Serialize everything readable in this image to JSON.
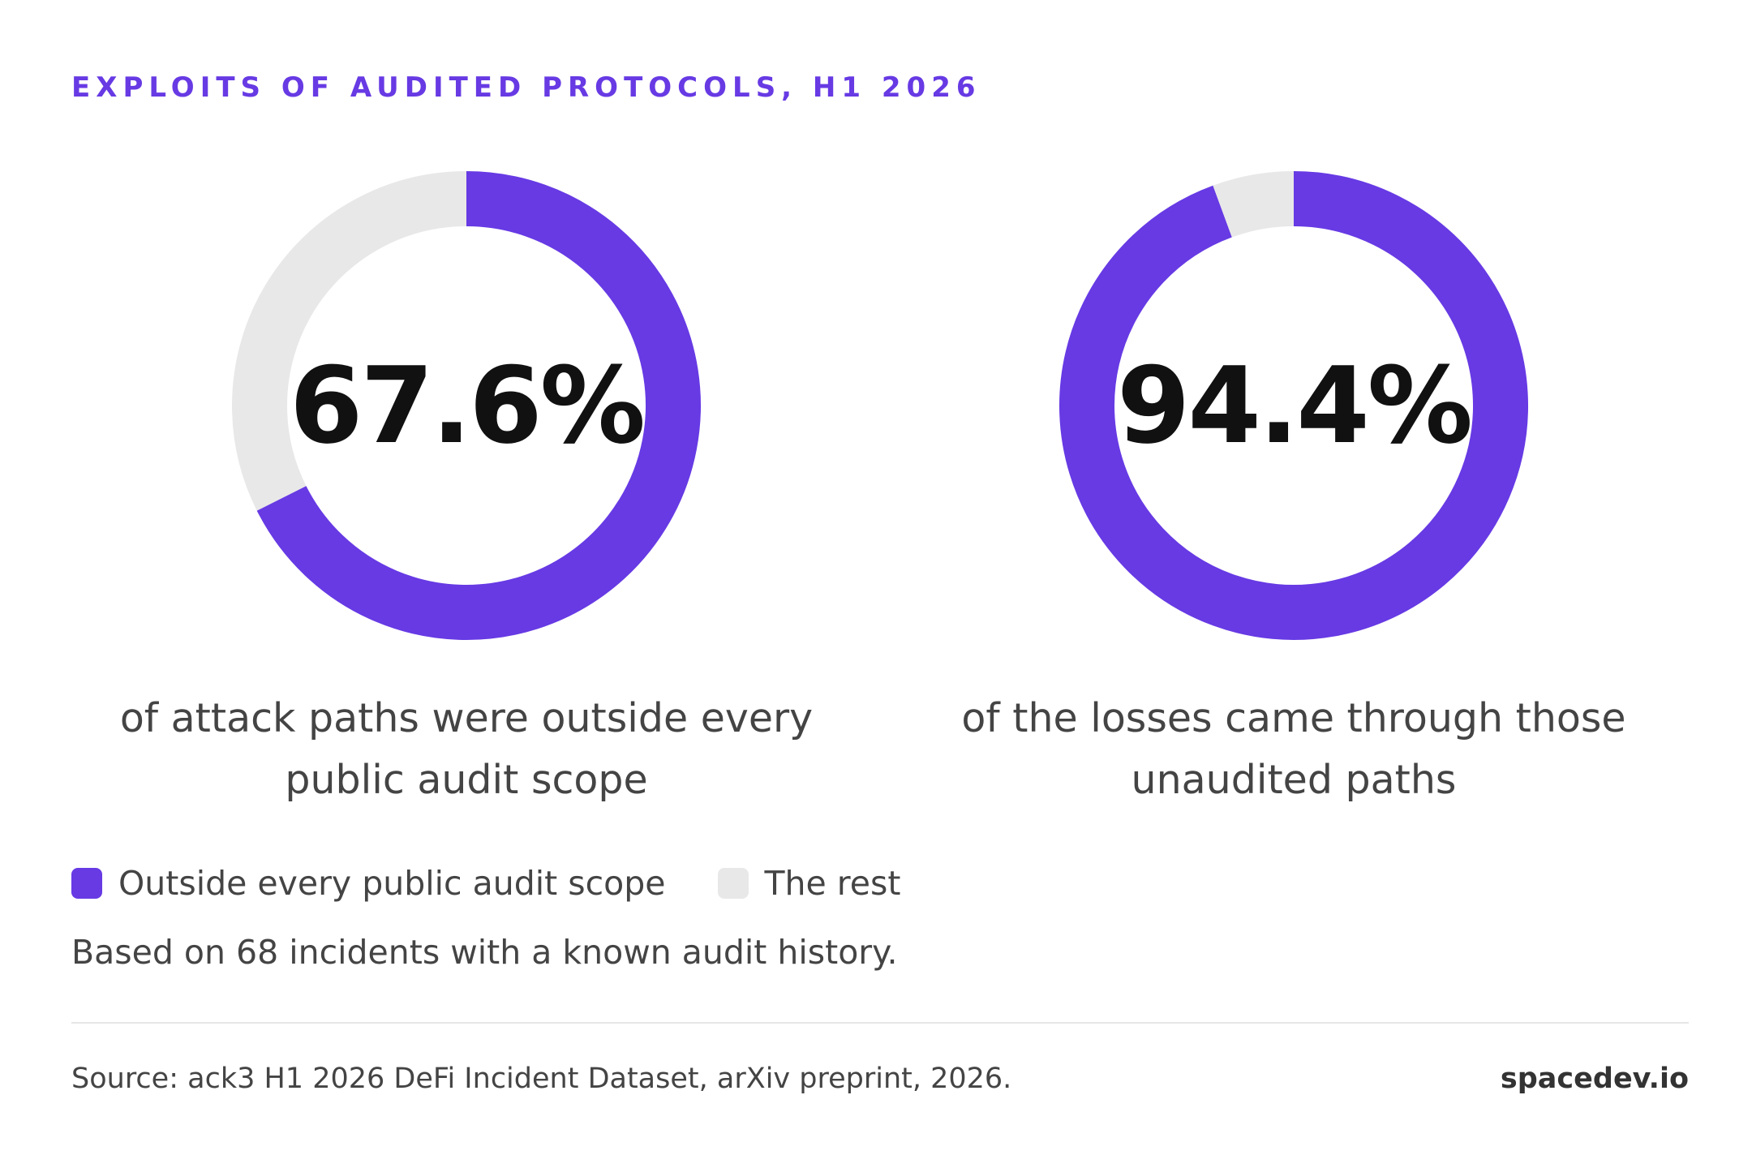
{
  "colors": {
    "accent": "#673ae4",
    "rest": "#e8e8e8",
    "value_text": "#111111",
    "body_text": "#444444"
  },
  "header": {
    "eyebrow": "EXPLOITS OF AUDITED PROTOCOLS, H1 2026"
  },
  "chart_data": [
    {
      "type": "pie",
      "donut": true,
      "value_percent": 67.6,
      "value_label": "67.6%",
      "caption_lines": [
        "of attack paths were outside every",
        "public audit scope"
      ],
      "slices": [
        {
          "name": "Outside every public audit scope",
          "value": 67.6,
          "color": "#673ae4"
        },
        {
          "name": "The rest",
          "value": 32.4,
          "color": "#e8e8e8"
        }
      ]
    },
    {
      "type": "pie",
      "donut": true,
      "value_percent": 94.4,
      "value_label": "94.4%",
      "caption_lines": [
        "of the losses came through those",
        "unaudited paths"
      ],
      "slices": [
        {
          "name": "Outside every public audit scope",
          "value": 94.4,
          "color": "#673ae4"
        },
        {
          "name": "The rest",
          "value": 5.6,
          "color": "#e8e8e8"
        }
      ]
    }
  ],
  "legend": {
    "items": [
      {
        "label": "Outside every public audit scope",
        "color": "#673ae4"
      },
      {
        "label": "The rest",
        "color": "#e8e8e8"
      }
    ]
  },
  "note": "Based on 68 incidents with a known audit history.",
  "footer": {
    "source": "Source: ack3 H1 2026 DeFi Incident Dataset, arXiv preprint, 2026.",
    "brand": "spacedev.io"
  }
}
